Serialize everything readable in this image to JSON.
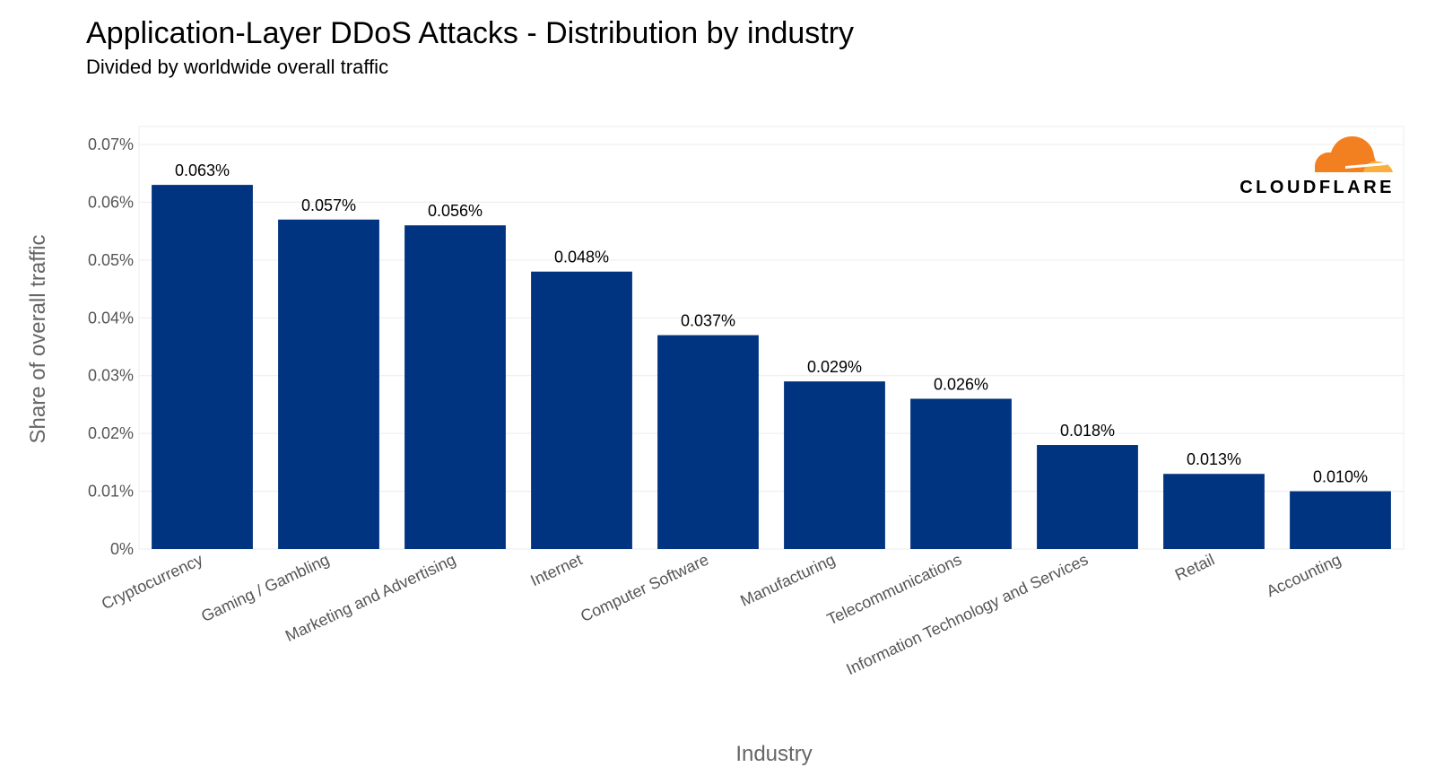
{
  "brand": {
    "name": "CLOUDFLARE",
    "logo_icon": "cloud-logo-icon",
    "logo_colors": [
      "#f38020",
      "#faae40"
    ]
  },
  "chart_data": {
    "type": "bar",
    "title": "Application-Layer DDoS Attacks - Distribution by industry",
    "subtitle": "Divided by worldwide overall traffic",
    "xlabel": "Industry",
    "ylabel": "Share of overall traffic",
    "categories": [
      "Cryptocurrency",
      "Gaming / Gambling",
      "Marketing and Advertising",
      "Internet",
      "Computer Software",
      "Manufacturing",
      "Telecommunications",
      "Information Technology and Services",
      "Retail",
      "Accounting"
    ],
    "values": [
      0.063,
      0.057,
      0.056,
      0.048,
      0.037,
      0.029,
      0.026,
      0.018,
      0.013,
      0.01
    ],
    "data_labels": [
      "0.063%",
      "0.057%",
      "0.056%",
      "0.048%",
      "0.037%",
      "0.029%",
      "0.026%",
      "0.018%",
      "0.013%",
      "0.010%"
    ],
    "yticks": [
      0,
      0.01,
      0.02,
      0.03,
      0.04,
      0.05,
      0.06,
      0.07
    ],
    "ytick_labels": [
      "0%",
      "0.01%",
      "0.02%",
      "0.03%",
      "0.04%",
      "0.05%",
      "0.06%",
      "0.07%"
    ],
    "ylim": [
      0,
      0.07
    ],
    "bar_color": "#003380",
    "grid": true,
    "legend": "none"
  }
}
